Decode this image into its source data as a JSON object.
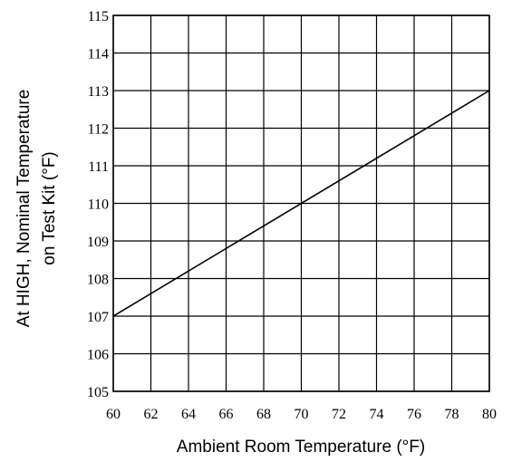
{
  "chart_data": {
    "type": "line",
    "title": "",
    "xlabel": "Ambient Room Temperature (°F)",
    "ylabel_line1": "At HIGH, Nominal Temperature",
    "ylabel_line2": "on Test Kit (°F)",
    "xlim": [
      60,
      80
    ],
    "ylim": [
      105,
      115
    ],
    "x_ticks": [
      60,
      62,
      64,
      66,
      68,
      70,
      72,
      74,
      76,
      78,
      80
    ],
    "y_ticks": [
      105,
      106,
      107,
      108,
      109,
      110,
      111,
      112,
      113,
      114,
      115
    ],
    "grid": true,
    "legend": "none",
    "series": [
      {
        "x": [
          60,
          80
        ],
        "y": [
          107,
          113
        ]
      }
    ],
    "colors": {
      "line": "#000000",
      "grid": "#000000",
      "background": "#ffffff"
    }
  }
}
